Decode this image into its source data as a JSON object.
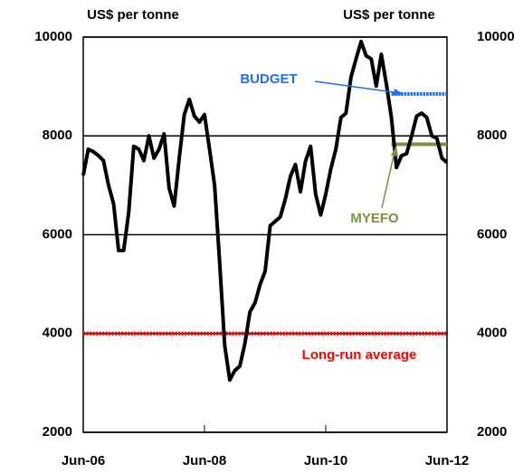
{
  "chart_data": {
    "type": "line",
    "y_label": "US$ per tonne",
    "y2_label": "US$ per tonne",
    "categories": [
      "Jun-06",
      null,
      null,
      null,
      null,
      null,
      null,
      null,
      null,
      null,
      null,
      null,
      null,
      null,
      null,
      null,
      null,
      null,
      null,
      null,
      null,
      null,
      null,
      null,
      "Jun-08",
      null,
      null,
      null,
      null,
      null,
      null,
      null,
      null,
      null,
      null,
      null,
      null,
      null,
      null,
      null,
      null,
      null,
      null,
      null,
      null,
      null,
      null,
      null,
      "Jun-10",
      null,
      null,
      null,
      null,
      null,
      null,
      null,
      null,
      null,
      null,
      null,
      null,
      null,
      null,
      null,
      null,
      null,
      null,
      null,
      null,
      null,
      null,
      null,
      "Jun-12"
    ],
    "series": [
      {
        "color": "#000000",
        "values": [
          7200,
          7730,
          7680,
          7600,
          7500,
          7000,
          6630,
          5680,
          5680,
          6450,
          7790,
          7730,
          7500,
          8000,
          7550,
          7730,
          8040,
          6940,
          6580,
          7550,
          8430,
          8740,
          8400,
          8280,
          8430,
          7730,
          7000,
          5440,
          3760,
          3060,
          3250,
          3340,
          3800,
          4440,
          4620,
          4990,
          5260,
          6180,
          6270,
          6360,
          6720,
          7180,
          7420,
          6870,
          7490,
          7790,
          6820,
          6400,
          6820,
          7330,
          7730,
          8370,
          8460,
          9190,
          9560,
          9910,
          9620,
          9560,
          9010,
          9650,
          9050,
          8370,
          7360,
          7600,
          7640,
          8000,
          8400,
          8460,
          8370,
          8000,
          7950,
          7550,
          7460
        ]
      },
      {
        "name": "BUDGET",
        "color": "#1f6fe8",
        "values": [
          null,
          null,
          null,
          null,
          null,
          null,
          null,
          null,
          null,
          null,
          null,
          null,
          null,
          null,
          null,
          null,
          null,
          null,
          null,
          null,
          null,
          null,
          null,
          null,
          null,
          null,
          null,
          null,
          null,
          null,
          null,
          null,
          null,
          null,
          null,
          null,
          null,
          null,
          null,
          null,
          null,
          null,
          null,
          null,
          null,
          null,
          null,
          null,
          null,
          null,
          null,
          null,
          null,
          null,
          null,
          null,
          null,
          null,
          null,
          null,
          null,
          8850,
          8850,
          8850,
          8850,
          8850,
          8850,
          8850,
          8850,
          8850,
          8850,
          8850,
          8850
        ]
      },
      {
        "name": "MYEFO",
        "color": "#77933c",
        "values": [
          null,
          null,
          null,
          null,
          null,
          null,
          null,
          null,
          null,
          null,
          null,
          null,
          null,
          null,
          null,
          null,
          null,
          null,
          null,
          null,
          null,
          null,
          null,
          null,
          null,
          null,
          null,
          null,
          null,
          null,
          null,
          null,
          null,
          null,
          null,
          null,
          null,
          null,
          null,
          null,
          null,
          null,
          null,
          null,
          null,
          null,
          null,
          null,
          null,
          null,
          null,
          null,
          null,
          null,
          null,
          null,
          null,
          null,
          null,
          null,
          null,
          7830,
          7830,
          7830,
          7830,
          7830,
          7830,
          7830,
          7830,
          7830,
          7830,
          7830,
          7830
        ]
      },
      {
        "name": "Long-run average",
        "color": "#ff0000",
        "values": [
          4000,
          4000,
          4000,
          4000,
          4000,
          4000,
          4000,
          4000,
          4000,
          4000,
          4000,
          4000,
          4000,
          4000,
          4000,
          4000,
          4000,
          4000,
          4000,
          4000,
          4000,
          4000,
          4000,
          4000,
          4000,
          4000,
          4000,
          4000,
          4000,
          4000,
          4000,
          4000,
          4000,
          4000,
          4000,
          4000,
          4000,
          4000,
          4000,
          4000,
          4000,
          4000,
          4000,
          4000,
          4000,
          4000,
          4000,
          4000,
          4000,
          4000,
          4000,
          4000,
          4000,
          4000,
          4000,
          4000,
          4000,
          4000,
          4000,
          4000,
          4000,
          4000,
          4000,
          4000,
          4000,
          4000,
          4000,
          4000,
          4000,
          4000,
          4000,
          4000,
          4000
        ]
      }
    ],
    "ylim": [
      2000,
      10000
    ],
    "yticks": [
      2000,
      4000,
      6000,
      8000,
      10000
    ],
    "y2lim": [
      2000,
      10000
    ],
    "y2ticks": [
      2000,
      4000,
      6000,
      8000,
      10000
    ],
    "grid": true
  }
}
